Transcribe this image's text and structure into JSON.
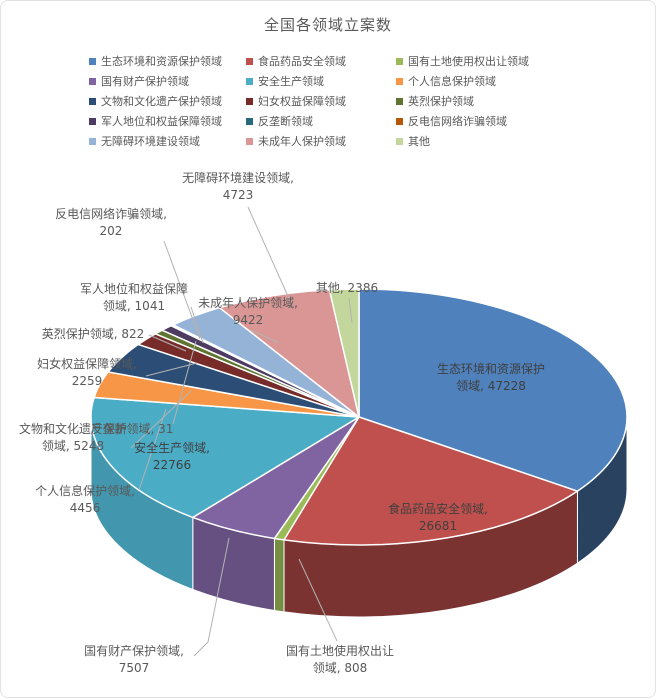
{
  "chart_data": {
    "type": "pie",
    "title": "全国各领域立案数",
    "style": "3d-pie",
    "legend_position": "top",
    "grid": false,
    "series": [
      {
        "name": "生态环境和资源保护领域",
        "value": 47228,
        "color": "#4F81BD"
      },
      {
        "name": "食品药品安全领域",
        "value": 26681,
        "color": "#C0504D"
      },
      {
        "name": "国有土地使用权出让领域",
        "value": 808,
        "color": "#9BBB59"
      },
      {
        "name": "国有财产保护领域",
        "value": 7507,
        "color": "#8064A2"
      },
      {
        "name": "安全生产领域",
        "value": 22766,
        "color": "#4BACC6"
      },
      {
        "name": "个人信息保护领域",
        "value": 4456,
        "color": "#F79646"
      },
      {
        "name": "文物和文化遗产保护领域",
        "value": 5248,
        "color": "#2C4D75"
      },
      {
        "name": "妇女权益保障领域",
        "value": 2259,
        "color": "#772C2A"
      },
      {
        "name": "英烈保护领域",
        "value": 822,
        "color": "#5F7530"
      },
      {
        "name": "军人地位和权益保障领域",
        "value": 1041,
        "color": "#4D3B62"
      },
      {
        "name": "反垄断领域",
        "value": 31,
        "color": "#276A7C"
      },
      {
        "name": "反电信网络诈骗领域",
        "value": 202,
        "color": "#B65708"
      },
      {
        "name": "无障碍环境建设领域",
        "value": 4723,
        "color": "#95B3D7"
      },
      {
        "name": "未成年人保护领域",
        "value": 9422,
        "color": "#D99694"
      },
      {
        "name": "其他",
        "value": 2386,
        "color": "#C3D69B"
      }
    ]
  },
  "labels": {
    "wuzhangai": {
      "l1": "无障碍环境建设领域,",
      "l2": "4723"
    },
    "fandianxin": {
      "l1": "反电信网络诈骗领域,",
      "l2": "202"
    },
    "junren": {
      "l1": "军人地位和权益保障",
      "l2": "领域, 1041"
    },
    "yinglie": {
      "l1": "英烈保护领域, 822"
    },
    "funv": {
      "l1": "妇女权益保障领域,",
      "l2": "2259"
    },
    "fanlongduan": {
      "l1": "反垄断领域, 31"
    },
    "wenwu": {
      "l1": "文物和文化遗产保护",
      "l2": "领域, 5248"
    },
    "gerenxinxi": {
      "l1": "个人信息保护领域,",
      "l2": "4456"
    },
    "anquan": {
      "l1": "安全生产领域,",
      "l2": "22766"
    },
    "caichan": {
      "l1": "国有财产保护领域,",
      "l2": "7507"
    },
    "tudi": {
      "l1": "国有土地使用权出让",
      "l2": "领域, 808"
    },
    "shipin": {
      "l1": "食品药品安全领域,",
      "l2": "26681"
    },
    "shengtai": {
      "l1": "生态环境和资源保护",
      "l2": "领域, 47228"
    },
    "weichengnian": {
      "l1": "未成年人保护领域,",
      "l2": "9422"
    },
    "qita": {
      "l1": "其他, 2386"
    }
  }
}
